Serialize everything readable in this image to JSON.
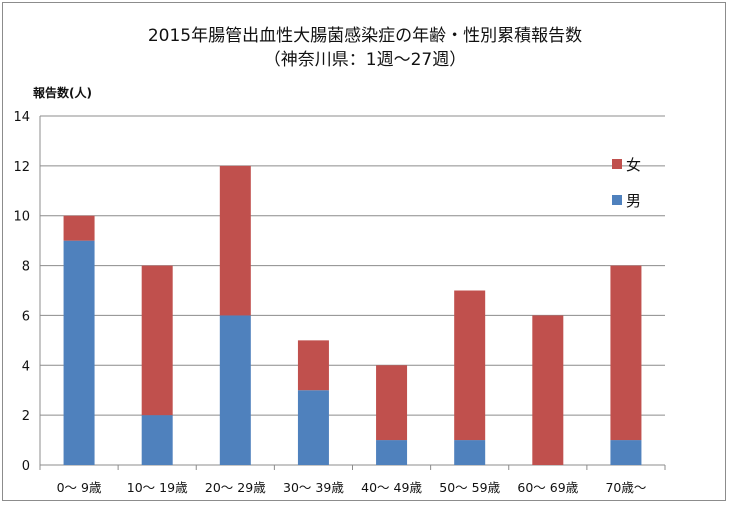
{
  "chart_data": {
    "type": "bar",
    "stacked": true,
    "title_line1": "2015年腸管出血性大腸菌感染症の年齢・性別累積報告数",
    "title_line2": "（神奈川県：1週〜27週）",
    "ylabel": "報告数(人)",
    "xlabel": "",
    "ylim": [
      0,
      14
    ],
    "ytick_step": 2,
    "grid": true,
    "legend_position": "right",
    "categories": [
      "0〜 9歳",
      "10〜 19歳",
      "20〜 29歳",
      "30〜 39歳",
      "40〜 49歳",
      "50〜 59歳",
      "60〜 69歳",
      "70歳〜"
    ],
    "series": [
      {
        "name": "男",
        "color": "#4f81bd",
        "values": [
          9,
          2,
          6,
          3,
          1,
          1,
          0,
          1
        ]
      },
      {
        "name": "女",
        "color": "#c0504d",
        "values": [
          1,
          6,
          6,
          2,
          3,
          6,
          6,
          7
        ]
      }
    ]
  }
}
